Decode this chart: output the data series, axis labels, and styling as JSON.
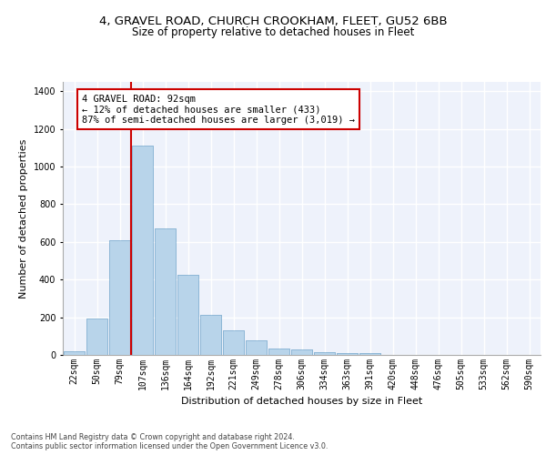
{
  "title1": "4, GRAVEL ROAD, CHURCH CROOKHAM, FLEET, GU52 6BB",
  "title2": "Size of property relative to detached houses in Fleet",
  "xlabel": "Distribution of detached houses by size in Fleet",
  "ylabel": "Number of detached properties",
  "bar_labels": [
    "22sqm",
    "50sqm",
    "79sqm",
    "107sqm",
    "136sqm",
    "164sqm",
    "192sqm",
    "221sqm",
    "249sqm",
    "278sqm",
    "306sqm",
    "334sqm",
    "363sqm",
    "391sqm",
    "420sqm",
    "448sqm",
    "476sqm",
    "505sqm",
    "533sqm",
    "562sqm",
    "590sqm"
  ],
  "bar_values": [
    20,
    195,
    610,
    1110,
    670,
    425,
    215,
    130,
    75,
    35,
    28,
    15,
    12,
    8,
    0,
    0,
    0,
    0,
    0,
    0,
    0
  ],
  "bar_color": "#b8d4ea",
  "bar_edge_color": "#8ab4d4",
  "ylim": [
    0,
    1450
  ],
  "yticks": [
    0,
    200,
    400,
    600,
    800,
    1000,
    1200,
    1400
  ],
  "red_line_x": 2.5,
  "annotation_text": "4 GRAVEL ROAD: 92sqm\n← 12% of detached houses are smaller (433)\n87% of semi-detached houses are larger (3,019) →",
  "annotation_box_color": "#ffffff",
  "annotation_border_color": "#cc0000",
  "background_color": "#eef2fb",
  "grid_color": "#ffffff",
  "footer_text": "Contains HM Land Registry data © Crown copyright and database right 2024.\nContains public sector information licensed under the Open Government Licence v3.0.",
  "title_fontsize": 9.5,
  "subtitle_fontsize": 8.5,
  "axis_label_fontsize": 8,
  "tick_fontsize": 7,
  "annotation_fontsize": 7.5,
  "footer_fontsize": 5.8
}
